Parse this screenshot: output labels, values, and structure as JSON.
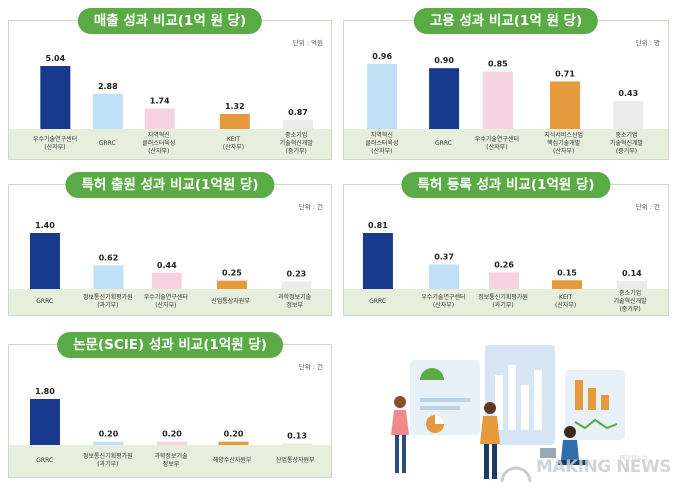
{
  "chart_data": [
    {
      "type": "bar",
      "title": "매출 성과 비교(1억 원 당)",
      "unit": "단위 : 억원",
      "categories": [
        "우수기술연구센터\n(산자부)",
        "GRRC",
        "지역혁신\n클러스터육성\n(산자부)",
        "KEIT\n(산자부)",
        "중소기업\n기술혁신개발\n(중기부)"
      ],
      "values": [
        5.04,
        2.88,
        1.74,
        1.32,
        0.87
      ],
      "value_labels": [
        "5.04",
        "2.88",
        "1.74",
        "1.32",
        "0.87"
      ],
      "colors": [
        "#173a8c",
        "#bfe0f6",
        "#f7d3e2",
        "#e59a3d",
        "#ebebeb"
      ],
      "ylim": [
        0,
        5.04
      ]
    },
    {
      "type": "bar",
      "title": "고용 성과 비교(1억 원 당)",
      "unit": "단위 : 명",
      "categories": [
        "지역혁신\n클러스터육성\n(산자부)",
        "GRRC",
        "우수기술연구센터\n(산자부)",
        "지식서비스산업\n핵심기술개발\n(산자부)",
        "중소기업\n기술혁신개발\n(중기부)"
      ],
      "values": [
        0.96,
        0.9,
        0.85,
        0.71,
        0.43
      ],
      "value_labels": [
        "0.96",
        "0.90",
        "0.85",
        "0.71",
        "0.43"
      ],
      "colors": [
        "#bfe0f6",
        "#173a8c",
        "#f7d3e2",
        "#e59a3d",
        "#ebebeb"
      ],
      "ylim": [
        0,
        0.96
      ]
    },
    {
      "type": "bar",
      "title": "특허 출원 성과 비교(1억원 당)",
      "unit": "단위 : 건",
      "categories": [
        "GRRC",
        "정보통신기획평가원\n(과기부)",
        "우수기술연구센터\n(산자부)",
        "산업통상자원부",
        "과학정보기술\n정보부"
      ],
      "values": [
        1.4,
        0.62,
        0.44,
        0.25,
        0.23
      ],
      "value_labels": [
        "1.40",
        "0.62",
        "0.44",
        "0.25",
        "0.23"
      ],
      "colors": [
        "#173a8c",
        "#bfe0f6",
        "#f7d3e2",
        "#e59a3d",
        "#ebebeb"
      ],
      "ylim": [
        0,
        1.4
      ]
    },
    {
      "type": "bar",
      "title": "특허 등록 성과 비교(1억원 당)",
      "unit": "단위 : 건",
      "categories": [
        "GRRC",
        "우수기술연구센터\n(산자부)",
        "정보통신기획평가원\n(과기부)",
        "KEIT\n(산자부)",
        "중소기업\n기술혁신개발\n(중기부)"
      ],
      "values": [
        0.81,
        0.37,
        0.26,
        0.15,
        0.14
      ],
      "value_labels": [
        "0.81",
        "0.37",
        "0.26",
        "0.15",
        "0.14"
      ],
      "colors": [
        "#173a8c",
        "#bfe0f6",
        "#f7d3e2",
        "#e59a3d",
        "#ebebeb"
      ],
      "ylim": [
        0,
        0.81
      ]
    },
    {
      "type": "bar",
      "title": "논문(SCIE) 성과 비교(1억원 당)",
      "unit": "단위 : 건",
      "categories": [
        "GRRC",
        "정보통신기획평가원\n(과기부)",
        "과학정보기술\n정보부",
        "해양수산자원부",
        "산업통상자원부"
      ],
      "values": [
        1.8,
        0.2,
        0.2,
        0.2,
        0.13
      ],
      "value_labels": [
        "1.80",
        "0.20",
        "0.20",
        "0.20",
        "0.13"
      ],
      "colors": [
        "#173a8c",
        "#bfe0f6",
        "#f7d3e2",
        "#e59a3d",
        "#ebebeb"
      ],
      "ylim": [
        0,
        1.8
      ]
    }
  ],
  "watermark": "MAKING NEWS",
  "watermark_small": "메이킹뉴스"
}
